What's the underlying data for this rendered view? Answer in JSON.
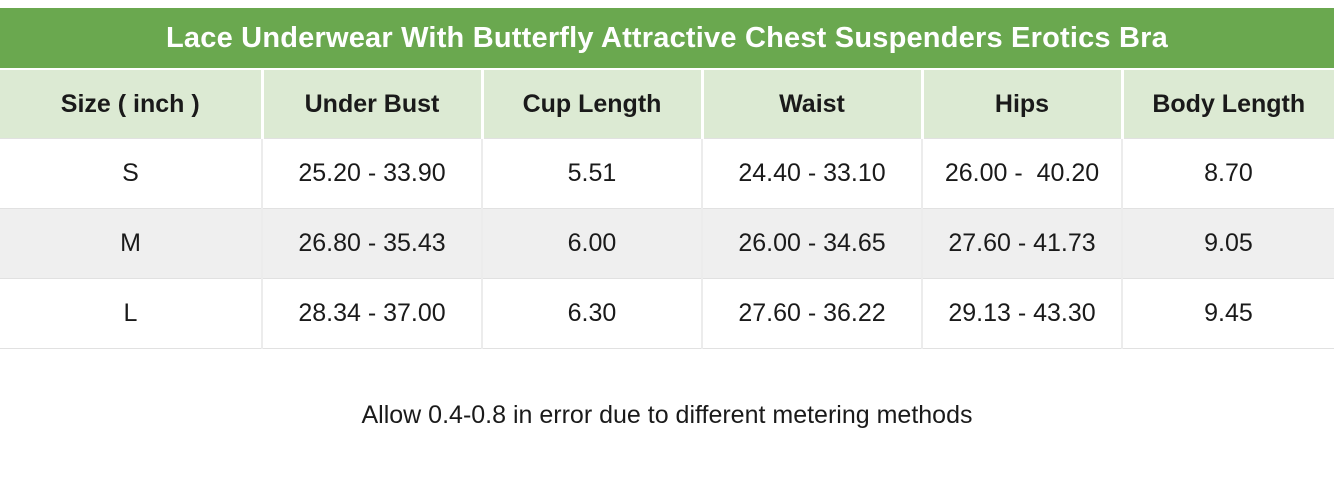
{
  "header": {
    "title": "Lace Underwear With Butterfly Attractive Chest Suspenders Erotics Bra"
  },
  "colors": {
    "title_bar_bg": "#6aa84f",
    "title_text": "#ffffff",
    "table_header_bg": "#dcead3",
    "alt_row_bg": "#efefef",
    "border": "#e1e1e1",
    "text": "#1a1a1a"
  },
  "table": {
    "columns": [
      "Size ( inch )",
      "Under Bust",
      "Cup Length",
      "Waist",
      "Hips",
      "Body Length"
    ],
    "rows": [
      {
        "size": "S",
        "under_bust": "25.20 - 33.90",
        "cup_length": "5.51",
        "waist": "24.40 - 33.10",
        "hips": "26.00 -  40.20",
        "body_length": "8.70"
      },
      {
        "size": "M",
        "under_bust": "26.80 - 35.43",
        "cup_length": "6.00",
        "waist": "26.00 - 34.65",
        "hips": "27.60 - 41.73",
        "body_length": "9.05"
      },
      {
        "size": "L",
        "under_bust": "28.34 - 37.00",
        "cup_length": "6.30",
        "waist": "27.60 - 36.22",
        "hips": "29.13 - 43.30",
        "body_length": "9.45"
      }
    ]
  },
  "note": {
    "text": "Allow 0.4-0.8 in error due to different metering methods"
  }
}
